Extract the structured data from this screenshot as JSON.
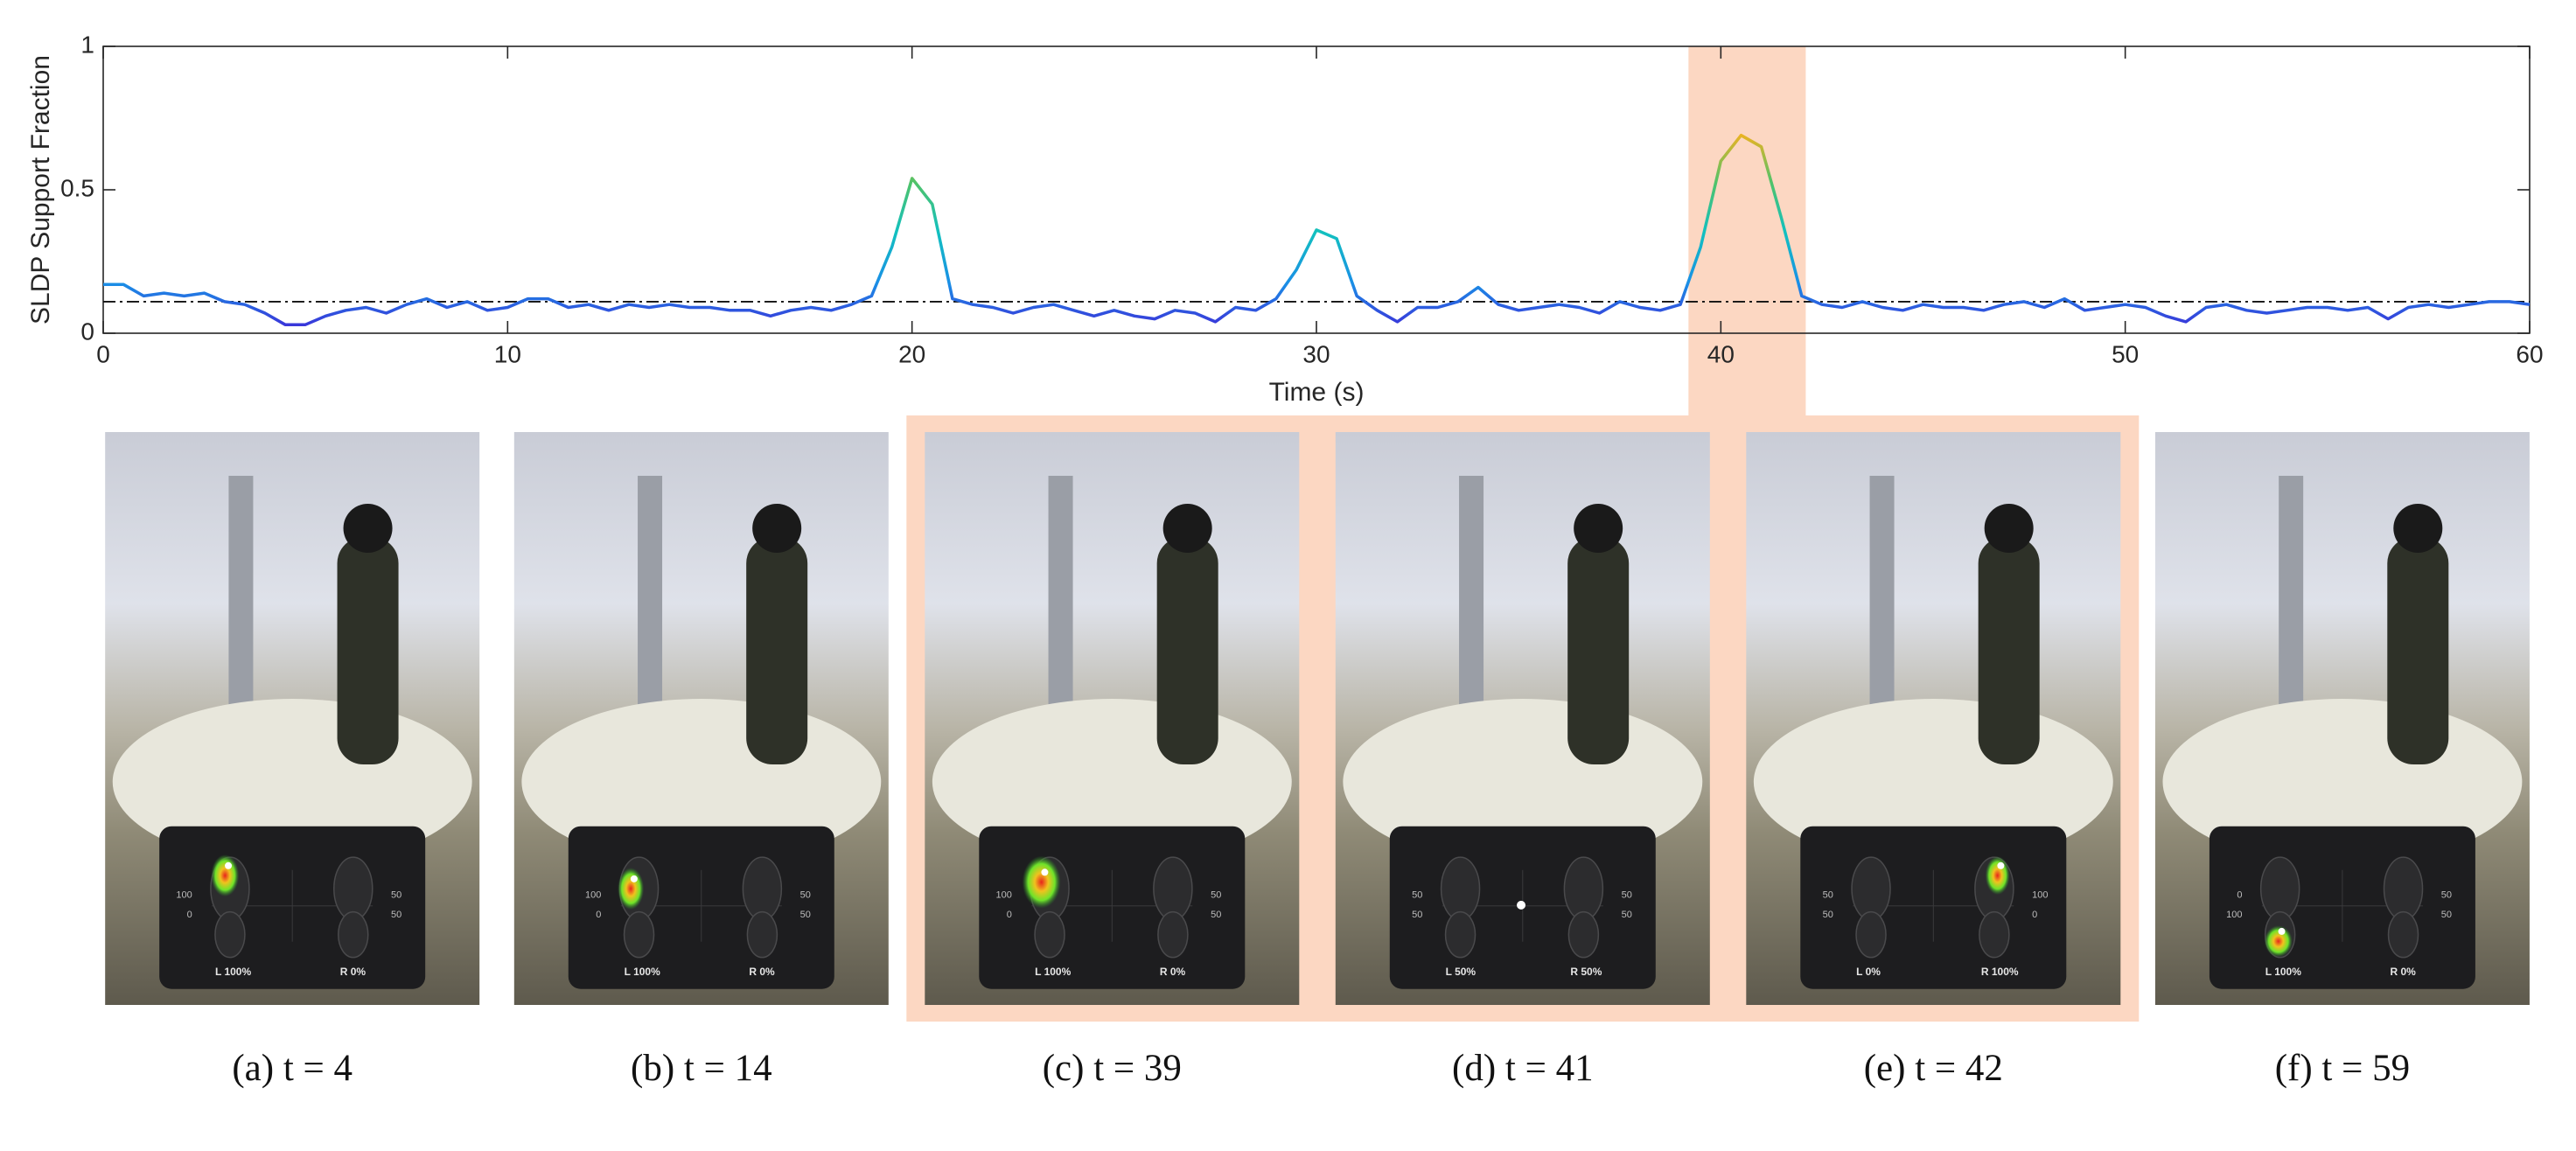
{
  "chart_data": {
    "type": "line",
    "ylabel": "SLDP Support Fraction",
    "xlabel": "Time (s)",
    "xlim": [
      0,
      60
    ],
    "ylim": [
      0,
      1
    ],
    "xticks": [
      0,
      10,
      20,
      30,
      40,
      50,
      60
    ],
    "yticks": [
      0,
      0.5,
      1
    ],
    "grid": false,
    "threshold": 0.11,
    "highlight": [
      39.2,
      42.1
    ],
    "highlight_color": "#fcd7c2",
    "colormap": [
      "#3f26d8",
      "#1a8fe6",
      "#12c0c0",
      "#4fc36a",
      "#f2b21f"
    ],
    "x": [
      0,
      0.5,
      1,
      1.5,
      2,
      2.5,
      3,
      3.5,
      4,
      4.5,
      5,
      5.5,
      6,
      6.5,
      7,
      7.5,
      8,
      8.5,
      9,
      9.5,
      10,
      10.5,
      11,
      11.5,
      12,
      12.5,
      13,
      13.5,
      14,
      14.5,
      15,
      15.5,
      16,
      16.5,
      17,
      17.5,
      18,
      18.5,
      19,
      19.5,
      20,
      20.5,
      21,
      21.5,
      22,
      22.5,
      23,
      23.5,
      24,
      24.5,
      25,
      25.5,
      26,
      26.5,
      27,
      27.5,
      28,
      28.5,
      29,
      29.5,
      30,
      30.5,
      31,
      31.5,
      32,
      32.5,
      33,
      33.5,
      34,
      34.5,
      35,
      35.5,
      36,
      36.5,
      37,
      37.5,
      38,
      38.5,
      39,
      39.5,
      40,
      40.5,
      41,
      41.5,
      42,
      42.5,
      43,
      43.5,
      44,
      44.5,
      45,
      45.5,
      46,
      46.5,
      47,
      47.5,
      48,
      48.5,
      49,
      49.5,
      50,
      50.5,
      51,
      51.5,
      52,
      52.5,
      53,
      53.5,
      54,
      54.5,
      55,
      55.5,
      56,
      56.5,
      57,
      57.5,
      58,
      58.5,
      59,
      59.5,
      60
    ],
    "values": [
      0.17,
      0.17,
      0.13,
      0.14,
      0.13,
      0.14,
      0.11,
      0.1,
      0.07,
      0.03,
      0.03,
      0.06,
      0.08,
      0.09,
      0.07,
      0.1,
      0.12,
      0.09,
      0.11,
      0.08,
      0.09,
      0.12,
      0.12,
      0.09,
      0.1,
      0.08,
      0.1,
      0.09,
      0.1,
      0.09,
      0.09,
      0.08,
      0.08,
      0.06,
      0.08,
      0.09,
      0.08,
      0.1,
      0.13,
      0.3,
      0.54,
      0.45,
      0.12,
      0.1,
      0.09,
      0.07,
      0.09,
      0.1,
      0.08,
      0.06,
      0.08,
      0.06,
      0.05,
      0.08,
      0.07,
      0.04,
      0.09,
      0.08,
      0.12,
      0.22,
      0.36,
      0.33,
      0.13,
      0.08,
      0.04,
      0.09,
      0.09,
      0.11,
      0.16,
      0.1,
      0.08,
      0.09,
      0.1,
      0.09,
      0.07,
      0.11,
      0.09,
      0.08,
      0.1,
      0.3,
      0.6,
      0.69,
      0.65,
      0.4,
      0.13,
      0.1,
      0.09,
      0.11,
      0.09,
      0.08,
      0.1,
      0.09,
      0.09,
      0.08,
      0.1,
      0.11,
      0.09,
      0.12,
      0.08,
      0.09,
      0.1,
      0.09,
      0.06,
      0.04,
      0.09,
      0.1,
      0.08,
      0.07,
      0.08,
      0.09,
      0.09,
      0.08,
      0.09,
      0.05,
      0.09,
      0.1,
      0.09,
      0.1,
      0.11,
      0.11,
      0.1
    ]
  },
  "panels": [
    {
      "caption": "(a) t = 4",
      "highlighted": false,
      "inset": {
        "left_ticks": [
          "100",
          "0"
        ],
        "right_ticks": [
          "50",
          "50"
        ],
        "left_reading": "L 100%",
        "right_reading": "R 0%"
      }
    },
    {
      "caption": "(b) t = 14",
      "highlighted": false,
      "inset": {
        "left_ticks": [
          "100",
          "0"
        ],
        "right_ticks": [
          "50",
          "50"
        ],
        "left_reading": "L 100%",
        "right_reading": "R 0%"
      }
    },
    {
      "caption": "(c) t = 39",
      "highlighted": true,
      "inset": {
        "left_ticks": [
          "100",
          "0"
        ],
        "right_ticks": [
          "50",
          "50"
        ],
        "left_reading": "L 100%",
        "right_reading": "R 0%"
      }
    },
    {
      "caption": "(d) t = 41",
      "highlighted": true,
      "inset": {
        "left_ticks": [
          "50",
          "50"
        ],
        "right_ticks": [
          "50",
          "50"
        ],
        "left_reading": "L 50%",
        "right_reading": "R 50%"
      }
    },
    {
      "caption": "(e) t = 42",
      "highlighted": true,
      "inset": {
        "left_ticks": [
          "50",
          "50"
        ],
        "right_ticks": [
          "100",
          "0"
        ],
        "left_reading": "L 0%",
        "right_reading": "R 100%"
      }
    },
    {
      "caption": "(f) t = 59",
      "highlighted": false,
      "inset": {
        "left_ticks": [
          "0",
          "100"
        ],
        "right_ticks": [
          "50",
          "50"
        ],
        "left_reading": "L 100%",
        "right_reading": "R 0%"
      }
    }
  ]
}
